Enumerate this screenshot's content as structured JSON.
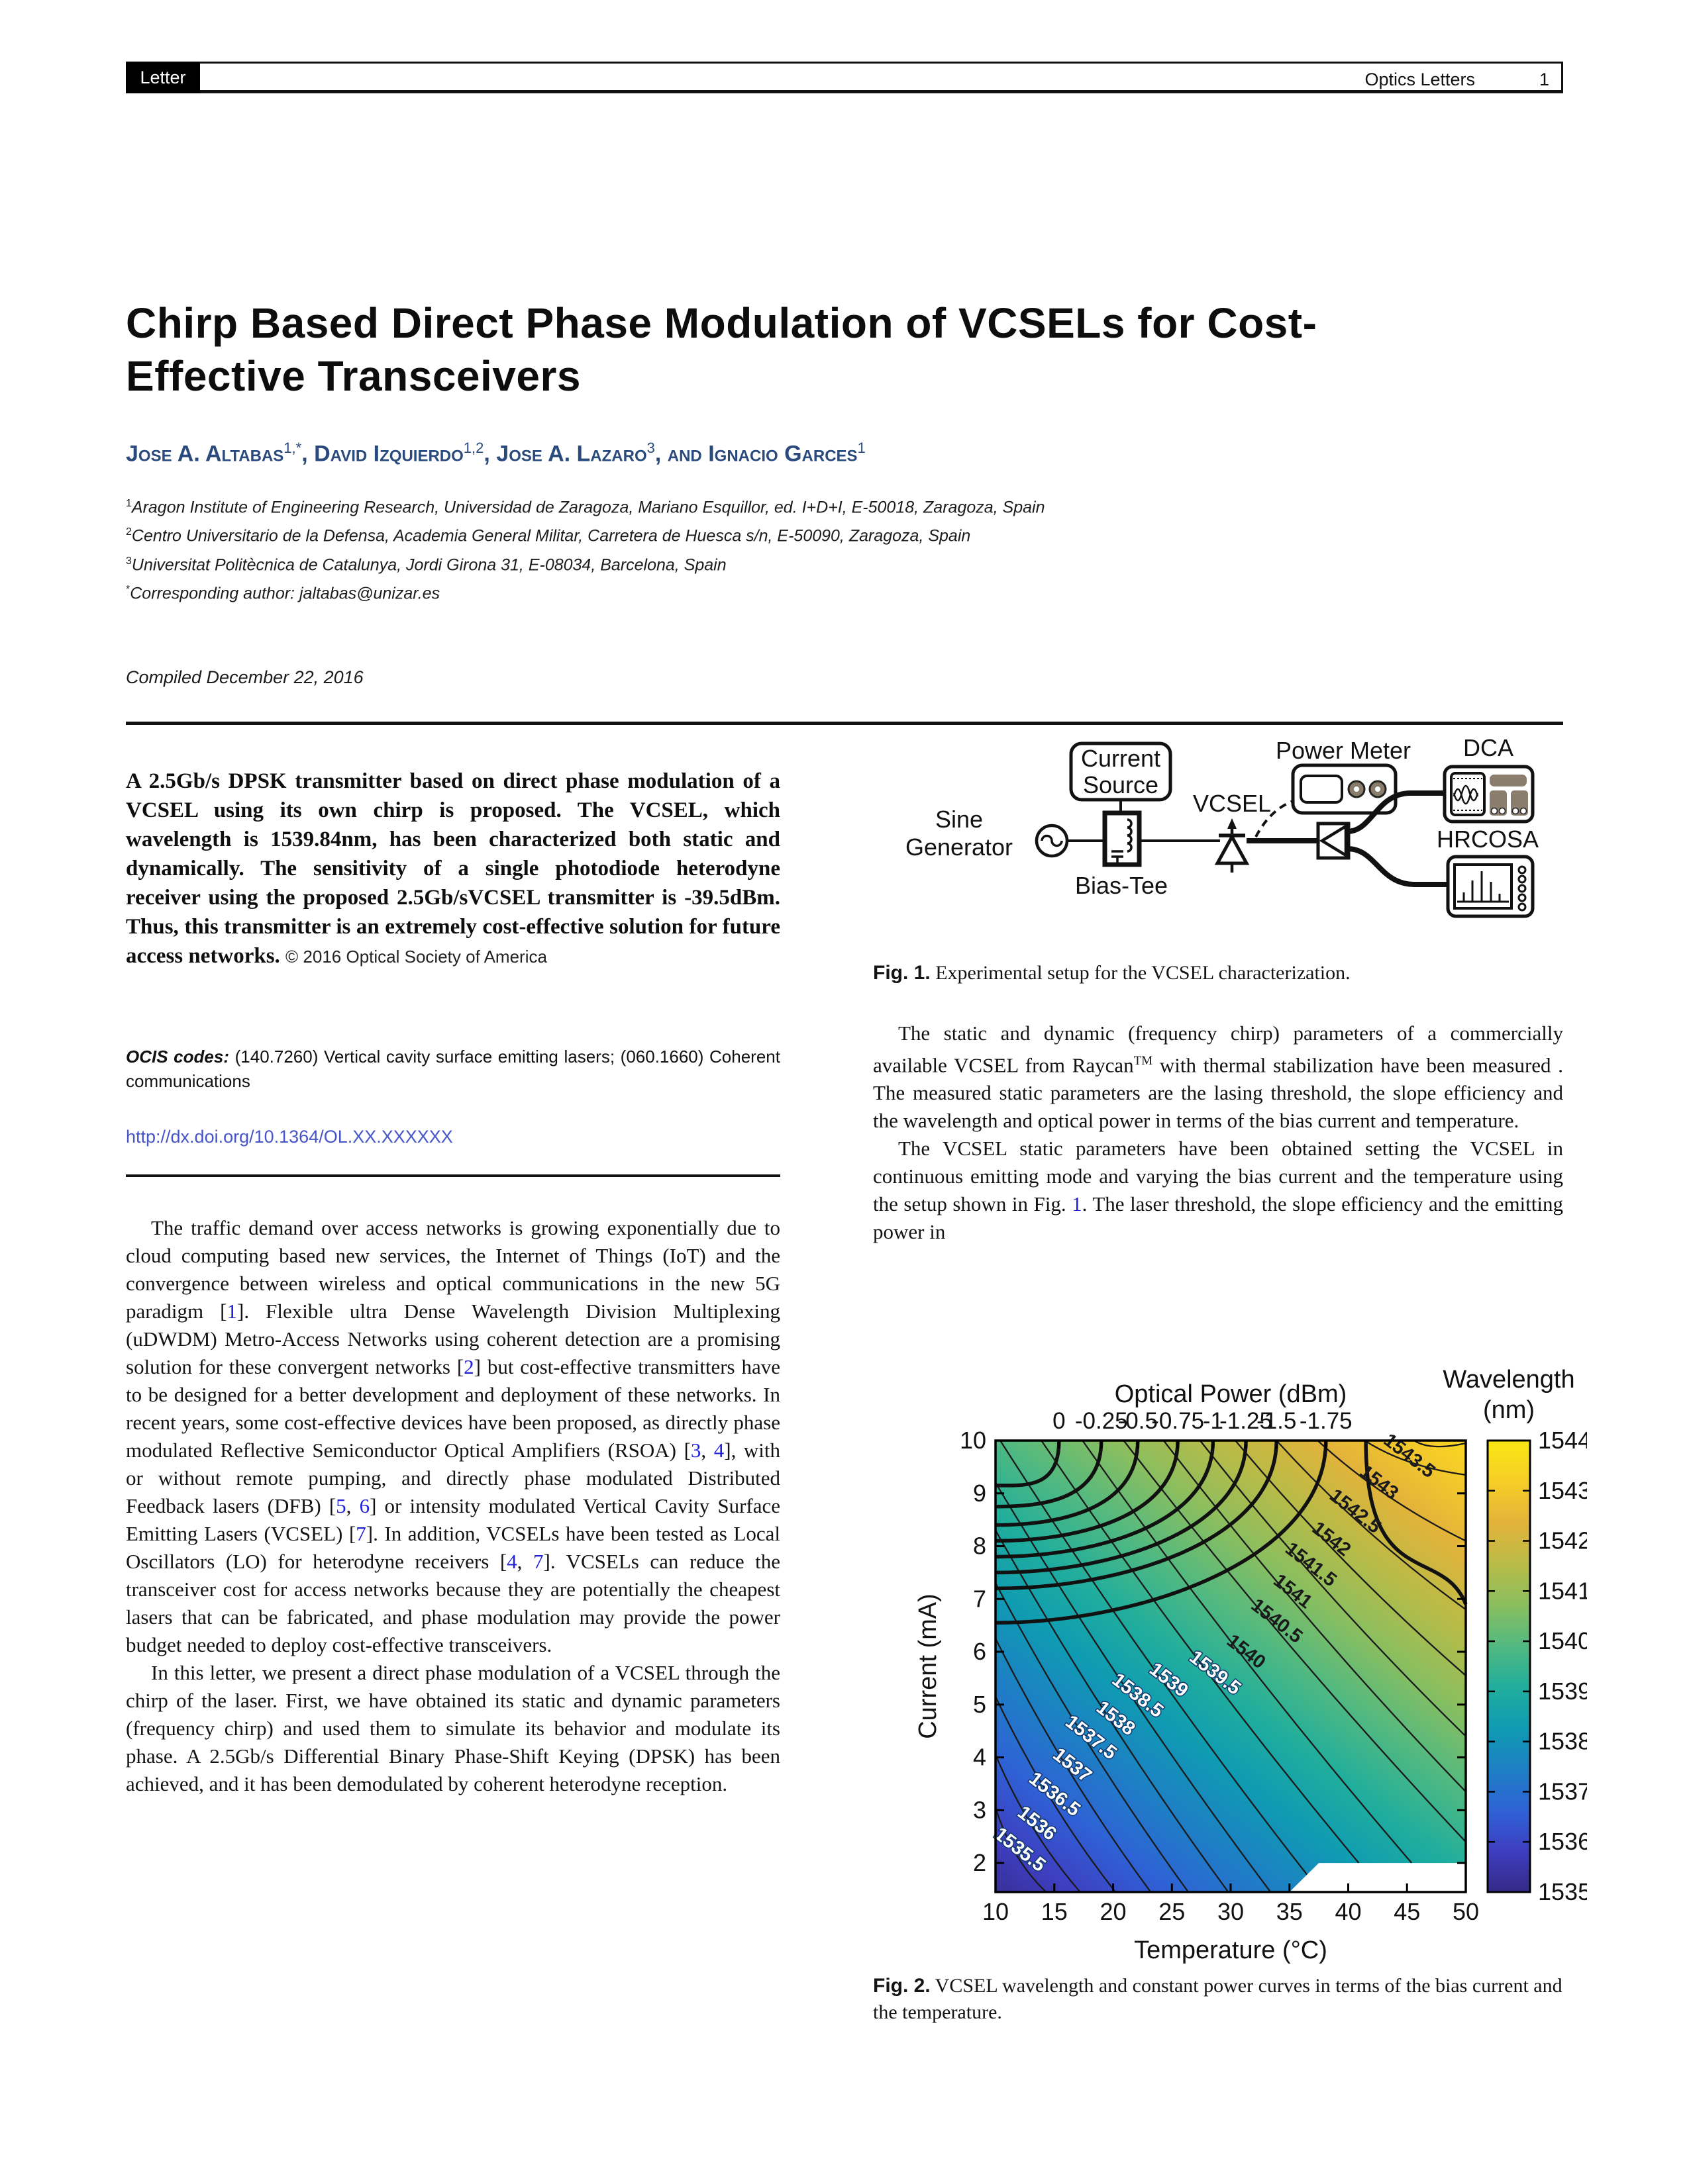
{
  "header": {
    "tag": "Letter",
    "journal": "Optics Letters",
    "page": "1"
  },
  "title": "Chirp Based Direct Phase Modulation of VCSELs for Cost-Effective Transceivers",
  "authors": [
    {
      "name": "Jose A. Altabas",
      "sup": "1,*",
      "sep": ", "
    },
    {
      "name": "David Izquierdo",
      "sup": "1,2",
      "sep": ", "
    },
    {
      "name": "Jose A. Lazaro",
      "sup": "3",
      "sep": ", and "
    },
    {
      "name": "Ignacio Garces",
      "sup": "1",
      "sep": ""
    }
  ],
  "affiliations": [
    {
      "sup": "1",
      "text": "Aragon Institute of Engineering Research, Universidad de Zaragoza, Mariano Esquillor, ed. I+D+I, E-50018, Zaragoza, Spain"
    },
    {
      "sup": "2",
      "text": "Centro Universitario de la Defensa, Academia General Militar, Carretera de Huesca s/n, E-50090, Zaragoza, Spain"
    },
    {
      "sup": "3",
      "text": "Universitat Politècnica de Catalunya, Jordi Girona 31, E-08034, Barcelona, Spain"
    },
    {
      "sup": "*",
      "text": "Corresponding author: jaltabas@unizar.es"
    }
  ],
  "compiled": "Compiled December 22, 2016",
  "abstract": {
    "text": "A 2.5Gb/s DPSK transmitter based on direct phase modulation of a VCSEL using its own chirp is proposed. The VCSEL, which wavelength is 1539.84nm, has been characterized both static and dynamically. The sensitivity of a single photodiode heterodyne receiver using the proposed 2.5Gb/sVCSEL transmitter is -39.5dBm. Thus, this transmitter is an extremely cost-effective solution for future access networks.",
    "copyright": "© 2016 Optical Society of America"
  },
  "ocis": {
    "label": "OCIS codes:",
    "text": "(140.7260) Vertical cavity surface emitting lasers; (060.1660) Coherent communications"
  },
  "doi": "http://dx.doi.org/10.1364/OL.XX.XXXXXX",
  "body_left": [
    "The traffic demand over access networks is growing exponentially due to cloud computing based new services, the Internet of Things (IoT) and the convergence between wireless and optical communications in the new 5G paradigm [1]. Flexible ultra Dense Wavelength Division Multiplexing (uDWDM) Metro-Access Networks using coherent detection are a promising solution for these convergent networks [2] but cost-effective transmitters have to be designed for a better development and deployment of these networks. In recent years, some cost-effective devices have been proposed, as directly phase modulated Reflective Semiconductor Optical Amplifiers (RSOA) [3, 4], with or without remote pumping, and directly phase modulated Distributed Feedback lasers (DFB) [5, 6] or intensity modulated Vertical Cavity Surface Emitting Lasers (VCSEL) [7]. In addition, VCSELs have been tested as Local Oscillators (LO) for heterodyne receivers [4, 7]. VCSELs can reduce the transceiver cost for access networks because they are potentially the cheapest lasers that can be fabricated, and phase modulation may provide the power budget needed to deploy cost-effective transceivers.",
    "In this letter, we present a direct phase modulation of a VCSEL through the chirp of the laser. First, we have obtained its static and dynamic parameters (frequency chirp) and used them to simulate its behavior and modulate its phase. A 2.5Gb/s Differential Binary Phase-Shift Keying (DPSK) has been achieved, and it has been demodulated by coherent heterodyne reception."
  ],
  "fig1": {
    "labels": {
      "sine1": "Sine",
      "sine2": "Generator",
      "cur1": "Current",
      "cur2": "Source",
      "bias": "Bias-Tee",
      "vcsel": "VCSEL",
      "pm": "Power Meter",
      "dca": "DCA",
      "hrcosa": "HRCOSA"
    },
    "caption_label": "Fig. 1.",
    "caption": "Experimental setup for the VCSEL characterization."
  },
  "body_right": [
    "The static and dynamic (frequency chirp) parameters of a commercially available VCSEL from Raycan^TM with thermal stabilization have been measured . The measured static parameters are the lasing threshold, the slope efficiency and the wavelength and optical power in terms of the bias current and temperature.",
    "The VCSEL static parameters have been obtained setting the VCSEL in continuous emitting mode and varying the bias current and the temperature using the setup shown in Fig. ^1. The laser threshold, the slope efficiency and the emitting power in"
  ],
  "chart_data": {
    "type": "heatmap",
    "subtype": "filled-contour",
    "top_axis_title": "Optical Power (dBm)",
    "xlabel": "Temperature (°C)",
    "ylabel": "Current (mA)",
    "colorbar_title_1": "Wavelength",
    "colorbar_title_2": "(nm)",
    "x_ticks": [
      10,
      15,
      20,
      25,
      30,
      35,
      40,
      45,
      50
    ],
    "y_ticks": [
      10,
      9,
      8,
      7,
      6,
      5,
      4,
      3,
      2
    ],
    "x_range": [
      10,
      50
    ],
    "y_range": [
      1.45,
      10
    ],
    "colorbar_ticks": [
      1544,
      1543,
      1542,
      1541,
      1540,
      1539,
      1538,
      1537,
      1536,
      1535
    ],
    "colorbar_range": [
      1535,
      1544
    ],
    "colormap": [
      "#352a87",
      "#3e3ec1",
      "#2e63d5",
      "#1d80c4",
      "#0f9bb2",
      "#21ae9c",
      "#52b980",
      "#8abe5f",
      "#b9bb47",
      "#e3b33a",
      "#f6ce27",
      "#f9e813"
    ],
    "wavelength_contours_nm": [
      {
        "v": "1535.5",
        "a": [
          10,
          3.05
        ],
        "b": [
          14.3,
          1.45
        ],
        "lt": 0.5
      },
      {
        "v": "1536",
        "a": [
          10,
          4.05
        ],
        "b": [
          17.2,
          1.45
        ],
        "lt": 0.5
      },
      {
        "v": "1536.5",
        "a": [
          10,
          5.15
        ],
        "b": [
          20.2,
          1.45
        ],
        "lt": 0.5
      },
      {
        "v": "1537",
        "a": [
          10,
          6.25
        ],
        "b": [
          23.2,
          1.45
        ],
        "lt": 0.5
      },
      {
        "v": "1537.5",
        "a": [
          10,
          7.3
        ],
        "b": [
          26.4,
          1.45
        ],
        "lt": 0.5
      },
      {
        "v": "1538",
        "a": [
          10,
          8.3
        ],
        "b": [
          29.8,
          1.45
        ],
        "lt": 0.52
      },
      {
        "v": "1538.5",
        "a": [
          10,
          9.2
        ],
        "b": [
          33.4,
          1.45
        ],
        "lt": 0.52
      },
      {
        "v": "1539",
        "a": [
          10.4,
          10
        ],
        "b": [
          36.6,
          1.75
        ],
        "lt": 0.55
      },
      {
        "v": "1539.5",
        "a": [
          13.9,
          10
        ],
        "b": [
          40.9,
          2.0
        ],
        "lt": 0.55
      },
      {
        "v": "1540",
        "a": [
          17.4,
          10
        ],
        "b": [
          45.4,
          2.0
        ],
        "lt": 0.5
      },
      {
        "v": "1540.5",
        "a": [
          20.9,
          10
        ],
        "b": [
          50,
          2.4
        ],
        "lt": 0.45
      },
      {
        "v": "1541",
        "a": [
          24.3,
          10
        ],
        "b": [
          50,
          3.35
        ],
        "lt": 0.43
      },
      {
        "v": "1541.5",
        "a": [
          27.4,
          10
        ],
        "b": [
          50,
          4.4
        ],
        "lt": 0.42
      },
      {
        "v": "1542",
        "a": [
          30.4,
          10
        ],
        "b": [
          50,
          5.55
        ],
        "lt": 0.42
      },
      {
        "v": "1542.5",
        "a": [
          33.9,
          10
        ],
        "b": [
          50,
          6.8
        ],
        "lt": 0.42
      },
      {
        "v": "1543",
        "a": [
          37.4,
          10
        ],
        "b": [
          50,
          8.1
        ],
        "lt": 0.42
      },
      {
        "v": "1543.5",
        "a": [
          41.4,
          10
        ],
        "b": [
          50,
          9.35
        ],
        "lt": 0.45
      },
      {
        "v": "1544",
        "a": [
          45.6,
          10
        ],
        "b": [
          50,
          9.95
        ],
        "lt": 0.5,
        "nolabel": true
      }
    ],
    "power_contours_dBm": [
      {
        "v": "0",
        "topT": 15.4,
        "leftI": 9.15
      },
      {
        "v": "-0.25",
        "topT": 19.0,
        "leftI": 8.75
      },
      {
        "v": "-0.5",
        "topT": 22.1,
        "leftI": 8.4
      },
      {
        "v": "-0.75",
        "topT": 25.5,
        "leftI": 8.1
      },
      {
        "v": "-1",
        "topT": 28.5,
        "leftI": 7.8
      },
      {
        "v": "-1.25",
        "topT": 31.3,
        "leftI": 7.5
      },
      {
        "v": "-1.5",
        "topT": 33.9,
        "leftI": 7.2
      },
      {
        "v": "-1.75",
        "topT": 38.1,
        "leftI": 6.55
      },
      {
        "v": "-2",
        "topT": 41.5,
        "rightI": 6.9,
        "nolabel": true
      }
    ],
    "no_data_region_T_I": [
      [
        35,
        1.45
      ],
      [
        37.5,
        2
      ],
      [
        50,
        2
      ],
      [
        50,
        1.45
      ]
    ],
    "grid": false,
    "legend_position": "right-colorbar"
  },
  "fig2_caption": {
    "label": "Fig. 2.",
    "text": "VCSEL wavelength and constant power curves in terms of the bias current and the temperature."
  }
}
